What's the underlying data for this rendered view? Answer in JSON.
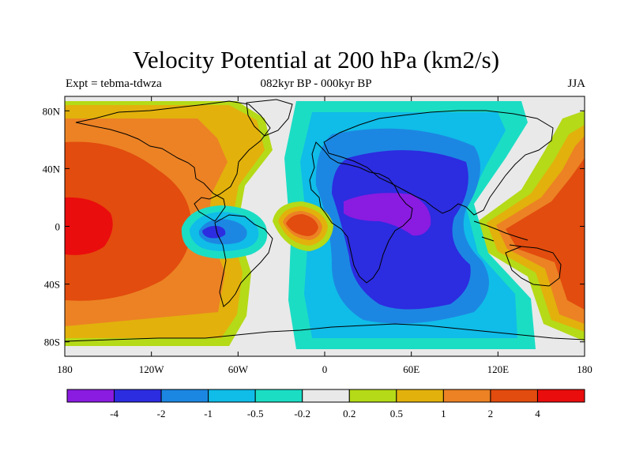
{
  "title": "Velocity Potential at 200 hPa (km2/s)",
  "subtitle_left": "Expt = tebma-tdwza",
  "subtitle_center": "082kyr BP - 000kyr BP",
  "subtitle_right": "JJA",
  "axes": {
    "lon_ticks": [
      {
        "value": -180,
        "label": "180"
      },
      {
        "value": -120,
        "label": "120W"
      },
      {
        "value": -60,
        "label": "60W"
      },
      {
        "value": 0,
        "label": "0"
      },
      {
        "value": 60,
        "label": "60E"
      },
      {
        "value": 120,
        "label": "120E"
      },
      {
        "value": 180,
        "label": "180"
      }
    ],
    "lat_ticks": [
      {
        "value": 80,
        "label": "80N"
      },
      {
        "value": 40,
        "label": "40N"
      },
      {
        "value": 0,
        "label": "0"
      },
      {
        "value": -40,
        "label": "40S"
      },
      {
        "value": -80,
        "label": "80S"
      }
    ],
    "lon_range": [
      -180,
      180
    ],
    "lat_range": [
      -90,
      90
    ]
  },
  "colorbar": {
    "colors": [
      "#8a1be0",
      "#2c2ce0",
      "#1c87e2",
      "#10bce8",
      "#1bddc4",
      "#e9e9e9",
      "#b5da17",
      "#e2b10c",
      "#ec8224",
      "#e24c0e",
      "#ea0d0d"
    ],
    "labels": [
      "-4",
      "-2",
      "-1",
      "-0.5",
      "-0.2",
      "0.2",
      "0.5",
      "1",
      "2",
      "4"
    ]
  },
  "chart_data": {
    "type": "heatmap",
    "title": "Velocity Potential at 200 hPa (km2/s)",
    "variable": "Velocity Potential at 200 hPa",
    "units": "km2/s",
    "contour_levels": [
      -4,
      -2,
      -1,
      -0.5,
      -0.2,
      0.2,
      0.5,
      1,
      2,
      4
    ],
    "features": [
      {
        "sign": "negative",
        "center_lon": 40,
        "center_lat": 20,
        "peak": -4
      },
      {
        "sign": "negative",
        "center_lon": -80,
        "center_lat": 0,
        "peak": -2
      },
      {
        "sign": "positive",
        "center_lon": -170,
        "center_lat": 0,
        "peak": 4
      },
      {
        "sign": "positive",
        "center_lon": 160,
        "center_lat": 0,
        "peak": 4
      },
      {
        "sign": "positive",
        "center_lon": -15,
        "center_lat": 0,
        "peak": 2
      }
    ]
  }
}
